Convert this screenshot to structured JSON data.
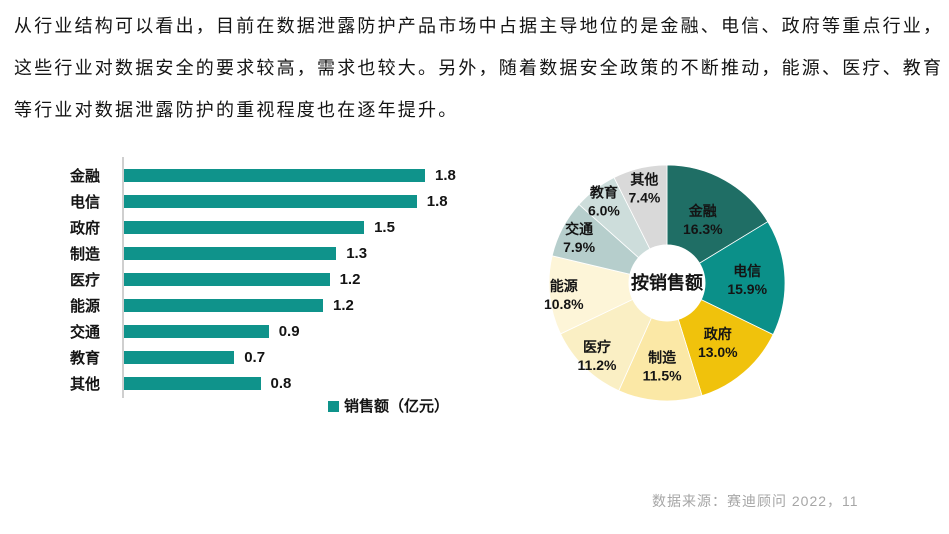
{
  "intro": {
    "lines": [
      "从行业结构可以看出，目前在数据泄露防护产品市场中占据主导地位的是金融、电信、政府等重点行业，",
      "这些行业对数据安全的要求较高，需求也较大。另外，随着数据安全政策的不断推动，能源、医疗、教育",
      "等行业对数据泄露防护的重视程度也在逐年提升。"
    ]
  },
  "source_note": "数据来源：赛迪顾问  2022，11",
  "colors": {
    "bar": "#0F938B",
    "axis": "#CFCFCF",
    "text": "#141414",
    "source_text": "#A6A6A6",
    "donut_hole": "#FFFFFF"
  },
  "chart_data": [
    {
      "type": "bar",
      "orientation": "horizontal",
      "legend": "销售额（亿元）",
      "categories": [
        "金融",
        "电信",
        "政府",
        "制造",
        "医疗",
        "能源",
        "交通",
        "教育",
        "其他"
      ],
      "values": [
        1.8,
        1.8,
        1.5,
        1.3,
        1.2,
        1.2,
        0.9,
        0.7,
        0.8
      ],
      "values_precise": [
        1.83,
        1.78,
        1.46,
        1.29,
        1.25,
        1.21,
        0.88,
        0.67,
        0.83
      ],
      "value_labels": [
        "1.8",
        "1.8",
        "1.5",
        "1.3",
        "1.2",
        "1.2",
        "0.9",
        "0.7",
        "0.8"
      ],
      "xlim": [
        0,
        2.0
      ],
      "unit": "亿元"
    },
    {
      "type": "pie",
      "center_label": "按销售额",
      "segments": [
        {
          "label": "金融",
          "pct": 16.3,
          "pct_label": "16.3%",
          "color": "#1F6E65"
        },
        {
          "label": "电信",
          "pct": 15.9,
          "pct_label": "15.9%",
          "color": "#0B9089"
        },
        {
          "label": "政府",
          "pct": 13.0,
          "pct_label": "13.0%",
          "color": "#F0C20C"
        },
        {
          "label": "制造",
          "pct": 11.5,
          "pct_label": "11.5%",
          "color": "#FBE8A6"
        },
        {
          "label": "医疗",
          "pct": 11.2,
          "pct_label": "11.2%",
          "color": "#FAEFC4"
        },
        {
          "label": "能源",
          "pct": 10.8,
          "pct_label": "10.8%",
          "color": "#FDF5D8"
        },
        {
          "label": "交通",
          "pct": 7.9,
          "pct_label": "7.9%",
          "color": "#B6CECC"
        },
        {
          "label": "教育",
          "pct": 6.0,
          "pct_label": "6.0%",
          "color": "#CDDDDB"
        },
        {
          "label": "其他",
          "pct": 7.4,
          "pct_label": "7.4%",
          "color": "#D9D9D9"
        }
      ]
    }
  ]
}
